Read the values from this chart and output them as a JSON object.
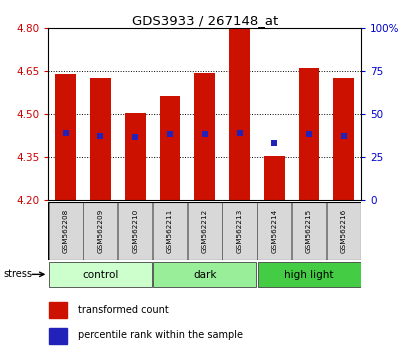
{
  "title": "GDS3933 / 267148_at",
  "samples": [
    "GSM562208",
    "GSM562209",
    "GSM562210",
    "GSM562211",
    "GSM562212",
    "GSM562213",
    "GSM562214",
    "GSM562215",
    "GSM562216"
  ],
  "bar_values": [
    4.64,
    4.625,
    4.505,
    4.565,
    4.645,
    4.8,
    4.355,
    4.66,
    4.625
  ],
  "percentile_values": [
    4.435,
    4.425,
    4.42,
    4.43,
    4.43,
    4.435,
    4.4,
    4.43,
    4.425
  ],
  "y_min": 4.2,
  "y_max": 4.8,
  "y_ticks_left": [
    4.2,
    4.35,
    4.5,
    4.65,
    4.8
  ],
  "y_ticks_right": [
    0,
    25,
    50,
    75,
    100
  ],
  "groups": [
    {
      "label": "control",
      "start": 0,
      "end": 3,
      "color": "#ccffcc"
    },
    {
      "label": "dark",
      "start": 3,
      "end": 6,
      "color": "#99ee99"
    },
    {
      "label": "high light",
      "start": 6,
      "end": 9,
      "color": "#44cc44"
    }
  ],
  "bar_color": "#cc1100",
  "blue_color": "#2222bb",
  "bar_width": 0.6,
  "left_tick_color": "#cc0000",
  "right_tick_color": "#0000cc",
  "stress_label": "stress",
  "bg_color": "#ffffff",
  "plot_bg_color": "#ffffff",
  "tick_label_bg": "#d8d8d8",
  "legend_red_label": "transformed count",
  "legend_blue_label": "percentile rank within the sample"
}
